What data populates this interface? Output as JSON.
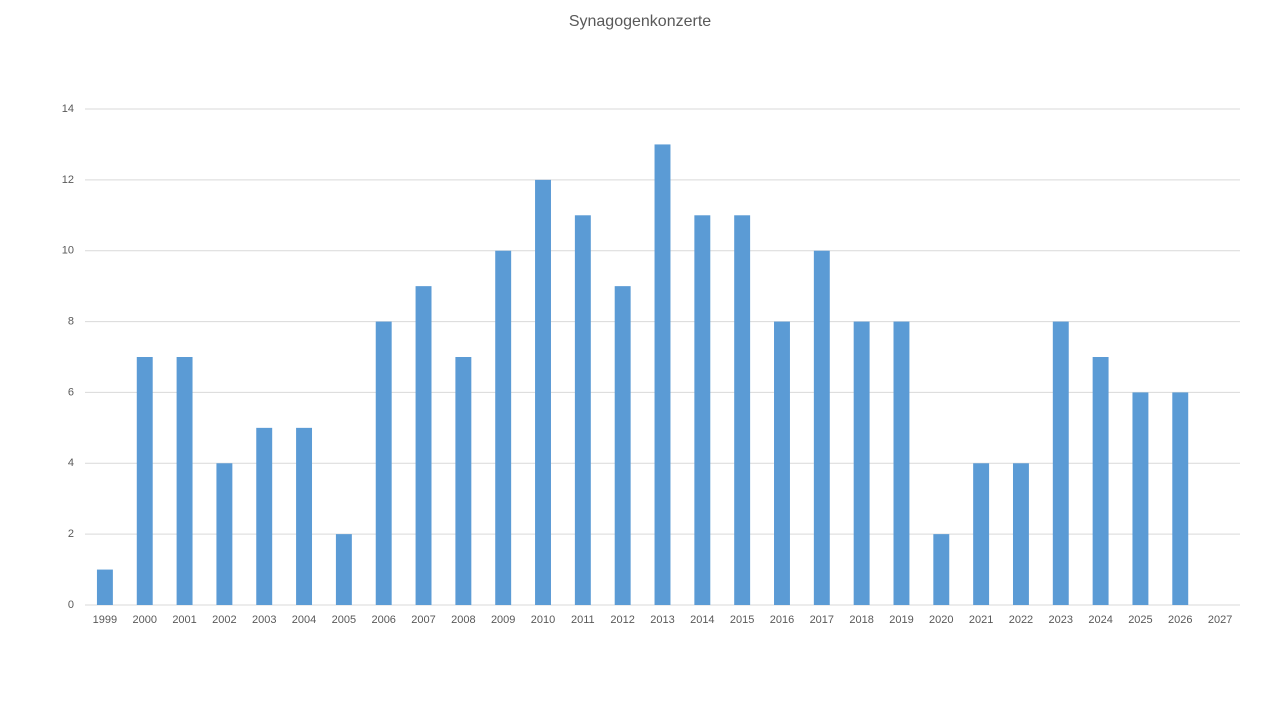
{
  "chart_data": {
    "type": "bar",
    "title": "Synagogenkonzerte",
    "categories": [
      "1999",
      "2000",
      "2001",
      "2002",
      "2003",
      "2004",
      "2005",
      "2006",
      "2007",
      "2008",
      "2009",
      "2010",
      "2011",
      "2012",
      "2013",
      "2014",
      "2015",
      "2016",
      "2017",
      "2018",
      "2019",
      "2020",
      "2021",
      "2022",
      "2023",
      "2024",
      "2025",
      "2026",
      "2027"
    ],
    "values": [
      1,
      7,
      7,
      4,
      5,
      5,
      2,
      8,
      9,
      7,
      10,
      12,
      11,
      9,
      13,
      11,
      11,
      8,
      10,
      8,
      8,
      2,
      4,
      4,
      8,
      7,
      6,
      6,
      null
    ],
    "color": "#5b9bd5",
    "ylim": [
      0,
      14
    ],
    "yticks": [
      0,
      2,
      4,
      6,
      8,
      10,
      12,
      14
    ],
    "grid": true
  }
}
